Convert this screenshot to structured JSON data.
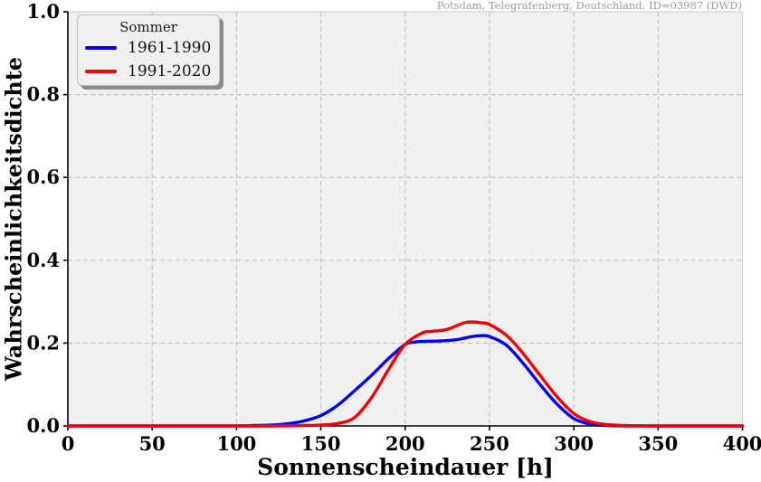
{
  "annotation": {
    "text": "Potsdam, Telegrafenberg, Deutschland: ID=03987 (DWD)"
  },
  "legend": {
    "title": "Sommer",
    "items": [
      {
        "label": "1961-1990",
        "color": "#0000f2"
      },
      {
        "label": "1991-2020",
        "color": "#f40000"
      }
    ]
  },
  "chart_data": {
    "type": "line",
    "title": "",
    "xlabel": "Sonnenscheindauer [h]",
    "ylabel": "Wahrscheinlichkeitsdichte",
    "xlim": [
      0,
      400
    ],
    "ylim": [
      0,
      1.0
    ],
    "xticks": [
      0,
      50,
      100,
      150,
      200,
      250,
      300,
      350,
      400
    ],
    "yticks": [
      0.0,
      0.2,
      0.4,
      0.6,
      0.8,
      1.0
    ],
    "grid": true,
    "grid_style": "dashed",
    "legend_position": "upper-left",
    "style": {
      "plot_bg": "#f0f0f0",
      "grid_color": "#bdbdbd",
      "spine_color": "#000000",
      "border_color": "#d4d4d4",
      "line_width": 3.4
    },
    "series": [
      {
        "name": "1961-1990",
        "color": "#0000f2",
        "x": [
          0,
          40,
          80,
          100,
          110,
          120,
          130,
          140,
          150,
          160,
          170,
          180,
          190,
          200,
          205,
          210,
          220,
          230,
          240,
          245,
          250,
          260,
          270,
          280,
          290,
          300,
          310,
          320,
          335,
          360,
          400
        ],
        "y": [
          0,
          0,
          0,
          0,
          0.001,
          0.002,
          0.005,
          0.012,
          0.025,
          0.05,
          0.085,
          0.122,
          0.162,
          0.197,
          0.202,
          0.204,
          0.205,
          0.208,
          0.216,
          0.218,
          0.216,
          0.195,
          0.151,
          0.1,
          0.053,
          0.018,
          0.004,
          0.001,
          0,
          0,
          0
        ]
      },
      {
        "name": "1991-2020",
        "color": "#f40000",
        "x": [
          0,
          40,
          80,
          120,
          140,
          150,
          160,
          170,
          180,
          190,
          200,
          210,
          215,
          220,
          225,
          230,
          235,
          240,
          245,
          250,
          260,
          270,
          280,
          290,
          300,
          310,
          320,
          330,
          345,
          370,
          400
        ],
        "y": [
          0,
          0,
          0,
          0,
          0.001,
          0.002,
          0.006,
          0.02,
          0.068,
          0.135,
          0.197,
          0.224,
          0.228,
          0.23,
          0.233,
          0.241,
          0.249,
          0.251,
          0.249,
          0.245,
          0.219,
          0.175,
          0.122,
          0.071,
          0.03,
          0.01,
          0.003,
          0.001,
          0,
          0,
          0
        ]
      }
    ]
  }
}
